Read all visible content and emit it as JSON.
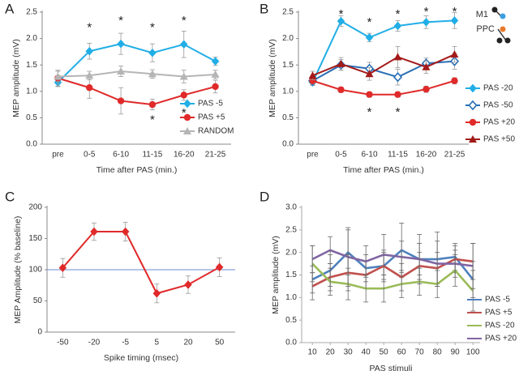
{
  "chart_data": [
    {
      "type": "line",
      "panel": "A",
      "y_label": "MEP amplitude (mV)",
      "x_label": "Time after PAS (min.)",
      "categories": [
        "pre",
        "0-5",
        "6-10",
        "11-15",
        "16-20",
        "21-25"
      ],
      "ylim": [
        0,
        2.5
      ],
      "yticks": [
        {
          "value": 0,
          "label": "0.0"
        },
        0.5,
        {
          "value": 1,
          "label": "1.0"
        },
        1.5,
        {
          "value": 2,
          "label": "2.0"
        },
        2.5
      ],
      "series": [
        {
          "name": "PAS -5",
          "color": "#21aee6",
          "marker": "diamond",
          "values": [
            1.17,
            1.76,
            1.9,
            1.73,
            1.89,
            1.57
          ],
          "errors": [
            0.08,
            0.15,
            0.2,
            0.17,
            0.25,
            0.08
          ]
        },
        {
          "name": "PAS +5",
          "color": "#e02a2a",
          "marker": "circle",
          "values": [
            1.25,
            1.07,
            0.82,
            0.75,
            0.93,
            1.09
          ],
          "errors": [
            0.15,
            0.2,
            0.25,
            0.1,
            0.1,
            0.12
          ]
        },
        {
          "name": "RANDOM",
          "color": "#b5b5b5",
          "marker": "triangle",
          "values": [
            1.28,
            1.3,
            1.38,
            1.33,
            1.28,
            1.32
          ],
          "errors": [
            0.1,
            0.08,
            0.1,
            0.08,
            0.12,
            0.08
          ]
        }
      ],
      "annotations": [
        {
          "text": "*",
          "x": "0-5",
          "y": 2.2
        },
        {
          "text": "*",
          "x": "6-10",
          "y": 2.33
        },
        {
          "text": "*",
          "x": "11-15",
          "y": 2.2
        },
        {
          "text": "*",
          "x": "16-20",
          "y": 2.33
        },
        {
          "text": "*",
          "x": "11-15",
          "y": 0.45
        },
        {
          "text": "*",
          "x": "16-20",
          "y": 0.58
        }
      ]
    },
    {
      "type": "line",
      "panel": "B",
      "y_label": "MEP amplitude (mV)",
      "x_label": "Time after PAS (min.)",
      "categories": [
        "pre",
        "0-5",
        "6-10",
        "11-15",
        "16-20",
        "21-25"
      ],
      "ylim": [
        0,
        2.5
      ],
      "yticks": [
        {
          "value": 0,
          "label": "0.0"
        },
        0.5,
        {
          "value": 1,
          "label": "1.0"
        },
        1.5,
        {
          "value": 2,
          "label": "2.0"
        },
        2.5
      ],
      "inset_labels": [
        "M1",
        "PPC"
      ],
      "series": [
        {
          "name": "PAS -20",
          "color": "#21aee6",
          "marker": "diamond",
          "values": [
            1.17,
            2.33,
            2.02,
            2.24,
            2.31,
            2.34
          ],
          "errors": [
            0.06,
            0.1,
            0.08,
            0.1,
            0.12,
            0.15
          ]
        },
        {
          "name": "PAS -50",
          "color": "#2a6fb5",
          "marker": "open-diamond",
          "values": [
            1.2,
            1.5,
            1.43,
            1.27,
            1.53,
            1.57
          ],
          "errors": [
            0.08,
            0.1,
            0.12,
            0.15,
            0.1,
            0.15
          ]
        },
        {
          "name": "PAS +20",
          "color": "#e02a2a",
          "marker": "circle",
          "values": [
            1.2,
            1.03,
            0.94,
            0.94,
            1.04,
            1.2
          ],
          "errors": [
            0.06,
            0.05,
            0.05,
            0.05,
            0.06,
            0.06
          ]
        },
        {
          "name": "PAS +50",
          "color": "#a31a1a",
          "marker": "triangle",
          "values": [
            1.3,
            1.52,
            1.33,
            1.65,
            1.46,
            1.7
          ],
          "errors": [
            0.08,
            0.12,
            0.12,
            0.2,
            0.12,
            0.15
          ]
        }
      ],
      "annotations": [
        {
          "text": "*",
          "x": "0-5",
          "y": 2.45
        },
        {
          "text": "*",
          "x": "6-10",
          "y": 2.3
        },
        {
          "text": "*",
          "x": "11-15",
          "y": 2.45
        },
        {
          "text": "*",
          "x": "16-20",
          "y": 2.5
        },
        {
          "text": "*",
          "x": "21-25",
          "y": 2.5
        },
        {
          "text": "*",
          "x": "6-10",
          "y": 0.6
        },
        {
          "text": "*",
          "x": "11-15",
          "y": 0.6
        }
      ]
    },
    {
      "type": "line",
      "panel": "C",
      "y_label": "MEP Amplitude (% baseline)",
      "x_label": "Spike timing (msec)",
      "categories": [
        "-50",
        "-20",
        "-5",
        "5",
        "20",
        "50"
      ],
      "ylim": [
        0,
        200
      ],
      "yticks": [
        0,
        50,
        100,
        150,
        200
      ],
      "reference_line": 100,
      "reference_color": "#6a8fd6",
      "series": [
        {
          "color": "#e02a2a",
          "marker": "diamond",
          "values": [
            103,
            161,
            161,
            62,
            76,
            104
          ],
          "errors": [
            15,
            14,
            15,
            15,
            14,
            15
          ]
        }
      ]
    },
    {
      "type": "line",
      "panel": "D",
      "y_label": "MEP amplitude (mV)",
      "x_label": "PAS stimuli",
      "x": [
        10,
        20,
        30,
        40,
        50,
        60,
        70,
        80,
        90,
        100
      ],
      "xlim": [
        4,
        104
      ],
      "xticks": [
        10,
        20,
        30,
        40,
        50,
        60,
        70,
        80,
        90,
        100
      ],
      "ylim": [
        0,
        3
      ],
      "yticks": [
        {
          "value": 0,
          "label": "0.0"
        },
        0.5,
        {
          "value": 1,
          "label": "1.0"
        },
        1.5,
        {
          "value": 2,
          "label": "2.0"
        },
        2.5,
        {
          "value": 3,
          "label": "3.0"
        }
      ],
      "series": [
        {
          "name": "PAS -5",
          "color": "#4f81bd",
          "marker": "none",
          "values": [
            1.4,
            1.6,
            2.0,
            1.65,
            1.7,
            2.05,
            1.85,
            1.85,
            1.9,
            1.4
          ],
          "errors": [
            0.3,
            0.35,
            0.5,
            0.3,
            0.3,
            0.6,
            0.35,
            0.6,
            0.3,
            0.4
          ]
        },
        {
          "name": "PAS +5",
          "color": "#c0504d",
          "marker": "none",
          "values": [
            1.25,
            1.45,
            1.55,
            1.5,
            1.7,
            1.45,
            1.7,
            1.65,
            1.85,
            1.8
          ],
          "errors": [
            0.3,
            0.3,
            0.4,
            0.3,
            0.35,
            0.3,
            0.3,
            0.35,
            0.3,
            0.4
          ]
        },
        {
          "name": "PAS -20",
          "color": "#9bbb59",
          "marker": "none",
          "values": [
            1.75,
            1.35,
            1.3,
            1.2,
            1.2,
            1.3,
            1.35,
            1.3,
            1.6,
            1.15
          ],
          "errors": [
            0.4,
            0.3,
            0.35,
            0.3,
            0.3,
            0.3,
            0.3,
            0.3,
            0.35,
            0.45
          ]
        },
        {
          "name": "PAS +20",
          "color": "#8064a2",
          "marker": "none",
          "values": [
            1.85,
            2.05,
            1.9,
            1.8,
            1.95,
            1.9,
            1.85,
            1.75,
            1.75,
            1.7
          ],
          "errors": [
            0.3,
            0.3,
            0.65,
            0.35,
            0.45,
            0.35,
            0.55,
            0.5,
            0.3,
            0.5
          ]
        }
      ]
    }
  ]
}
